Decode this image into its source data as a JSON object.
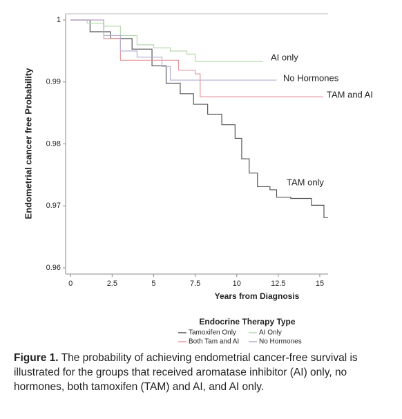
{
  "chart_data": {
    "type": "step",
    "xlabel": "Years from Diagnosis",
    "ylabel": "Endometrial cancer free Probability",
    "xlim": [
      -0.3,
      15.5
    ],
    "ylim": [
      0.959,
      1.001
    ],
    "xticks": [
      0,
      2.5,
      5,
      7.5,
      10,
      12.5,
      15
    ],
    "yticks": [
      0.96,
      0.97,
      0.98,
      0.99,
      1
    ],
    "legend_title": "Endocrine Therapy Type",
    "series": [
      {
        "name": "Tamoxifen Only",
        "color": "#555555",
        "annotation": "TAM only",
        "x": [
          0,
          1.17,
          2.4,
          3.7,
          4.9,
          5.75,
          6.6,
          7.4,
          8.25,
          9.1,
          9.9,
          10.3,
          10.75,
          11.25,
          12,
          12.4,
          13.25,
          14.5,
          15.25,
          15.5
        ],
        "values": [
          1,
          0.9981,
          0.997,
          0.9953,
          0.9926,
          0.9898,
          0.9881,
          0.9864,
          0.9848,
          0.9831,
          0.9809,
          0.9776,
          0.9753,
          0.9731,
          0.9726,
          0.9714,
          0.9712,
          0.9701,
          0.9681,
          0.9681
        ]
      },
      {
        "name": "AI Only",
        "color": "#b5d9ad",
        "annotation": "AI only",
        "x": [
          0,
          1,
          2,
          3,
          4,
          5,
          6,
          7,
          7.5,
          11.6
        ],
        "values": [
          1,
          0.9995,
          0.999,
          0.9975,
          0.996,
          0.9955,
          0.995,
          0.9945,
          0.9933,
          0.9933
        ]
      },
      {
        "name": "Both Tam and AI",
        "color": "#e8959c",
        "annotation": "TAM and AI",
        "x": [
          0,
          2,
          3,
          6,
          6.5,
          7.5,
          7.8,
          15.2
        ],
        "values": [
          1,
          0.997,
          0.9935,
          0.9935,
          0.9919,
          0.9913,
          0.9876,
          0.9876
        ]
      },
      {
        "name": "No Hormones",
        "color": "#b7aed0",
        "annotation": "No Hormones",
        "x": [
          0,
          2,
          3,
          4,
          5.5,
          6,
          12.4
        ],
        "values": [
          1,
          0.9975,
          0.995,
          0.994,
          0.9925,
          0.9903,
          0.9903
        ]
      }
    ]
  },
  "caption": {
    "label": "Figure 1.",
    "text": "The probability of achieving endometrial cancer-free survival is illustrated for the groups that received aromatase inhibitor (AI) only, no hormones, both tamoxifen (TAM) and AI, and AI only."
  }
}
